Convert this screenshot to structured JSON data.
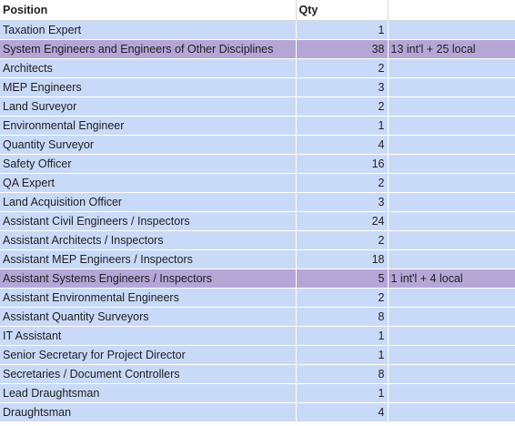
{
  "headers": {
    "position": "Position",
    "qty": "Qty",
    "note": ""
  },
  "colors": {
    "row_fill": "#c9daf8",
    "highlight_fill": "#b4a7d6"
  },
  "rows": [
    {
      "position": "Taxation Expert",
      "qty": "1",
      "note": "",
      "highlight": false
    },
    {
      "position": "System Engineers and Engineers of Other Disciplines",
      "qty": "38",
      "note": "13 int'l + 25 local",
      "highlight": true
    },
    {
      "position": "Architects",
      "qty": "2",
      "note": "",
      "highlight": false
    },
    {
      "position": "MEP Engineers",
      "qty": "3",
      "note": "",
      "highlight": false
    },
    {
      "position": "Land Surveyor",
      "qty": "2",
      "note": "",
      "highlight": false
    },
    {
      "position": "Environmental Engineer",
      "qty": "1",
      "note": "",
      "highlight": false
    },
    {
      "position": "Quantity Surveyor",
      "qty": "4",
      "note": "",
      "highlight": false
    },
    {
      "position": "Safety Officer",
      "qty": "16",
      "note": "",
      "highlight": false
    },
    {
      "position": "QA Expert",
      "qty": "2",
      "note": "",
      "highlight": false
    },
    {
      "position": "Land Acquisition Officer",
      "qty": "3",
      "note": "",
      "highlight": false
    },
    {
      "position": "Assistant Civil Engineers / Inspectors",
      "qty": "24",
      "note": "",
      "highlight": false
    },
    {
      "position": "Assistant Architects / Inspectors",
      "qty": "2",
      "note": "",
      "highlight": false
    },
    {
      "position": "Assistant MEP Engineers / Inspectors",
      "qty": "18",
      "note": "",
      "highlight": false
    },
    {
      "position": "Assistant Systems Engineers / Inspectors",
      "qty": "5",
      "note": "1 int'l + 4 local",
      "highlight": true
    },
    {
      "position": "Assistant Environmental Engineers",
      "qty": "2",
      "note": "",
      "highlight": false
    },
    {
      "position": "Assistant Quantity Surveyors",
      "qty": "8",
      "note": "",
      "highlight": false
    },
    {
      "position": "IT Assistant",
      "qty": "1",
      "note": "",
      "highlight": false
    },
    {
      "position": "Senior Secretary for Project Director",
      "qty": "1",
      "note": "",
      "highlight": false
    },
    {
      "position": "Secretaries / Document Controllers",
      "qty": "8",
      "note": "",
      "highlight": false
    },
    {
      "position": "Lead Draughtsman",
      "qty": "1",
      "note": "",
      "highlight": false
    },
    {
      "position": "Draughtsman",
      "qty": "4",
      "note": "",
      "highlight": false
    }
  ]
}
